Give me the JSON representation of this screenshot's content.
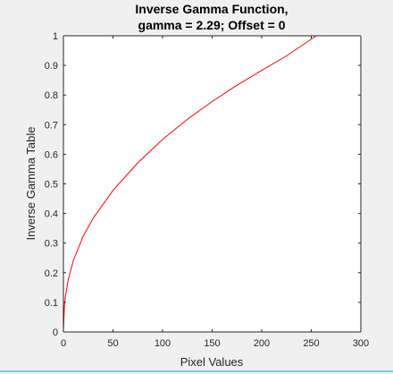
{
  "chart_data": {
    "type": "line",
    "title_lines": [
      "Inverse Gamma Function,",
      "gamma  = 2.29; Offset = 0"
    ],
    "xlabel": "Pixel Values",
    "ylabel": "Inverse Gamma Table",
    "xlim": [
      0,
      300
    ],
    "ylim": [
      0,
      1
    ],
    "x_ticks": [
      0,
      50,
      100,
      150,
      200,
      250,
      300
    ],
    "y_ticks": [
      0,
      0.1,
      0.2,
      0.3,
      0.4,
      0.5,
      0.6,
      0.7,
      0.8,
      0.9,
      1
    ],
    "x_tick_labels": [
      "0",
      "50",
      "100",
      "150",
      "200",
      "250",
      "300"
    ],
    "y_tick_labels": [
      "0",
      "0.1",
      "0.2",
      "0.3",
      "0.4",
      "0.5",
      "0.6",
      "0.7",
      "0.8",
      "0.9",
      "1"
    ],
    "grid": false,
    "series": [
      {
        "color": "#ff0000",
        "x": [
          0,
          1,
          2,
          5,
          10,
          20,
          30,
          50,
          75,
          100,
          125,
          150,
          175,
          200,
          225,
          255
        ],
        "y": [
          0,
          0.089,
          0.12,
          0.179,
          0.241,
          0.324,
          0.384,
          0.478,
          0.571,
          0.65,
          0.718,
          0.778,
          0.833,
          0.883,
          0.932,
          1.0
        ]
      }
    ]
  }
}
